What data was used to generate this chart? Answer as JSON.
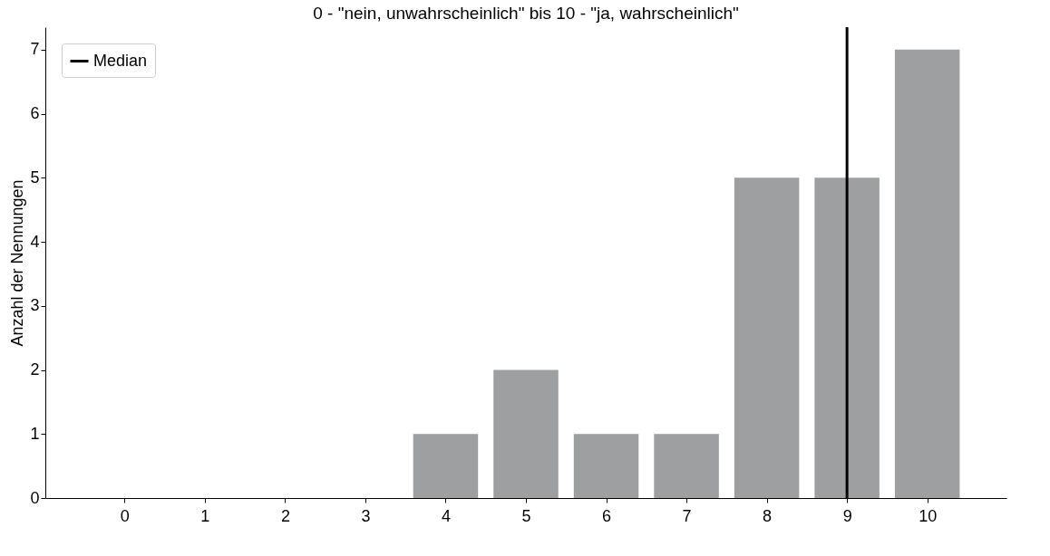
{
  "chart_data": {
    "type": "bar",
    "title": "0 - \"nein, unwahrscheinlich\" bis 10 - \"ja, wahrscheinlich\"",
    "ylabel": "Anzahl der Nennungen",
    "x": [
      0,
      1,
      2,
      3,
      4,
      5,
      6,
      7,
      8,
      9,
      10
    ],
    "values": [
      0,
      0,
      0,
      0,
      1,
      2,
      1,
      1,
      5,
      5,
      7
    ],
    "color": "#9e9fa0",
    "xlim": [
      -0.93,
      10.93
    ],
    "xticks": [
      0,
      1,
      2,
      3,
      4,
      5,
      6,
      7,
      8,
      9,
      10
    ],
    "ylim": [
      0,
      7.35
    ],
    "yticks": [
      0,
      1,
      2,
      3,
      4,
      5,
      6,
      7
    ],
    "ref_lines": [
      {
        "axis": "x",
        "value": 9,
        "label": "Median",
        "color": "#000000"
      }
    ],
    "grid": false,
    "legend": "top left"
  }
}
